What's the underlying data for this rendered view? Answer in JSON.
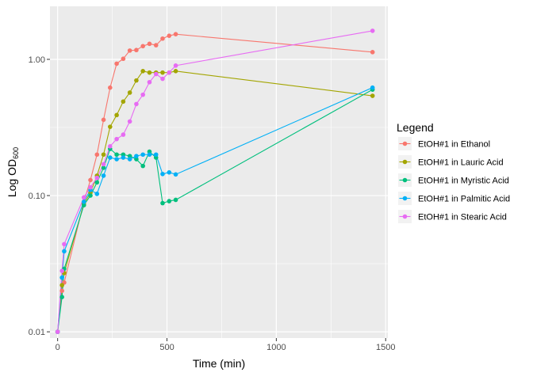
{
  "chart_data": {
    "type": "line",
    "xlabel": "Time (min)",
    "ylabel_main": "Log OD",
    "ylabel_sub": "600",
    "xlim": [
      -35,
      1510
    ],
    "ylim": [
      0.009,
      2.45
    ],
    "y_scale": "log",
    "x_ticks": [
      0,
      500,
      1000,
      1500
    ],
    "x_tick_labels": [
      "0",
      "500",
      "1000",
      "1500"
    ],
    "y_ticks": [
      0.01,
      0.1,
      1
    ],
    "y_tick_labels": [
      "0.01",
      "0.10",
      "1.00"
    ],
    "grid": true,
    "legend_position": "right",
    "legend_title": "Legend",
    "series": [
      {
        "name": "EtOH#1 in Ethanol",
        "color": "#F8766D",
        "x": [
          0,
          20,
          30,
          120,
          150,
          180,
          210,
          240,
          270,
          300,
          330,
          360,
          390,
          420,
          450,
          480,
          510,
          540,
          1440
        ],
        "y": [
          0.01,
          0.02,
          0.023,
          0.09,
          0.13,
          0.2,
          0.36,
          0.62,
          0.93,
          1.01,
          1.16,
          1.17,
          1.25,
          1.3,
          1.27,
          1.42,
          1.49,
          1.53,
          1.13
        ]
      },
      {
        "name": "EtOH#1 in Lauric Acid",
        "color": "#A3A500",
        "x": [
          0,
          20,
          30,
          120,
          150,
          180,
          210,
          240,
          270,
          300,
          330,
          360,
          390,
          420,
          450,
          480,
          510,
          540,
          1440
        ],
        "y": [
          0.01,
          0.022,
          0.027,
          0.087,
          0.105,
          0.14,
          0.2,
          0.32,
          0.39,
          0.49,
          0.57,
          0.7,
          0.82,
          0.8,
          0.8,
          0.8,
          0.8,
          0.82,
          0.54
        ]
      },
      {
        "name": "EtOH#1 in Myristic Acid",
        "color": "#00BF7D",
        "x": [
          0,
          20,
          30,
          120,
          150,
          180,
          210,
          240,
          270,
          300,
          330,
          360,
          390,
          420,
          450,
          480,
          510,
          540,
          1440
        ],
        "y": [
          0.01,
          0.018,
          0.029,
          0.085,
          0.1,
          0.125,
          0.16,
          0.22,
          0.2,
          0.2,
          0.195,
          0.185,
          0.165,
          0.21,
          0.19,
          0.088,
          0.091,
          0.093,
          0.6
        ]
      },
      {
        "name": "EtOH#1 in Palmitic Acid",
        "color": "#00B0F6",
        "x": [
          0,
          20,
          30,
          120,
          150,
          180,
          210,
          240,
          270,
          300,
          330,
          360,
          390,
          420,
          450,
          480,
          510,
          540,
          1440
        ],
        "y": [
          0.01,
          0.025,
          0.039,
          0.09,
          0.11,
          0.103,
          0.14,
          0.19,
          0.185,
          0.19,
          0.185,
          0.195,
          0.2,
          0.2,
          0.2,
          0.144,
          0.148,
          0.143,
          0.62
        ]
      },
      {
        "name": "EtOH#1 in Stearic Acid",
        "color": "#E76BF3",
        "x": [
          0,
          20,
          30,
          120,
          150,
          180,
          210,
          240,
          270,
          300,
          330,
          360,
          390,
          420,
          450,
          480,
          510,
          540,
          1440
        ],
        "y": [
          0.01,
          0.028,
          0.044,
          0.097,
          0.115,
          0.135,
          0.17,
          0.23,
          0.26,
          0.28,
          0.35,
          0.47,
          0.55,
          0.68,
          0.78,
          0.72,
          0.8,
          0.9,
          1.62
        ]
      }
    ]
  }
}
